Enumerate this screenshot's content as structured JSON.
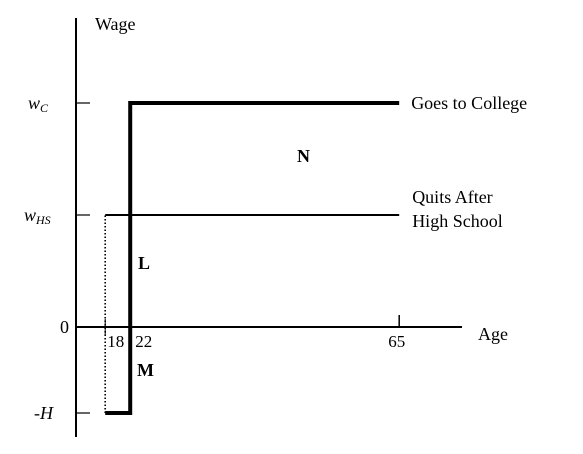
{
  "chart_data": {
    "type": "line",
    "title": "",
    "ylabel": "Wage",
    "xlabel": "Age",
    "x_ticks": [
      {
        "value": 18,
        "label": "18"
      },
      {
        "value": 22,
        "label": "22"
      },
      {
        "value": 65,
        "label": "65"
      }
    ],
    "y_ticks": [
      {
        "key": "wc",
        "base": "w",
        "sub": "C"
      },
      {
        "key": "whs",
        "base": "w",
        "sub": "HS"
      },
      {
        "key": "zero",
        "label": "0"
      },
      {
        "key": "negH",
        "label": "-H"
      }
    ],
    "series": [
      {
        "name": "Goes to College",
        "style": "thick-solid",
        "points": [
          [
            18,
            "negH"
          ],
          [
            22,
            "negH"
          ],
          [
            22,
            "wc"
          ],
          [
            65,
            "wc"
          ]
        ]
      },
      {
        "name": "Quits After High School",
        "label_lines": [
          "Quits After",
          "High School"
        ],
        "style": "thin-solid",
        "points": [
          [
            18,
            "whs"
          ],
          [
            65,
            "whs"
          ]
        ]
      }
    ],
    "connectors": [
      {
        "style": "dotted",
        "points": [
          [
            18,
            "negH"
          ],
          [
            18,
            "whs"
          ]
        ]
      }
    ],
    "regions": [
      {
        "label": "L",
        "x": 20,
        "y_between": [
          "zero",
          "whs"
        ]
      },
      {
        "label": "M",
        "x": 20,
        "y_between": [
          "negH",
          "zero"
        ]
      },
      {
        "label": "N",
        "x": 40,
        "y_between": [
          "whs",
          "wc"
        ]
      }
    ],
    "grid": false,
    "legend": "none"
  }
}
